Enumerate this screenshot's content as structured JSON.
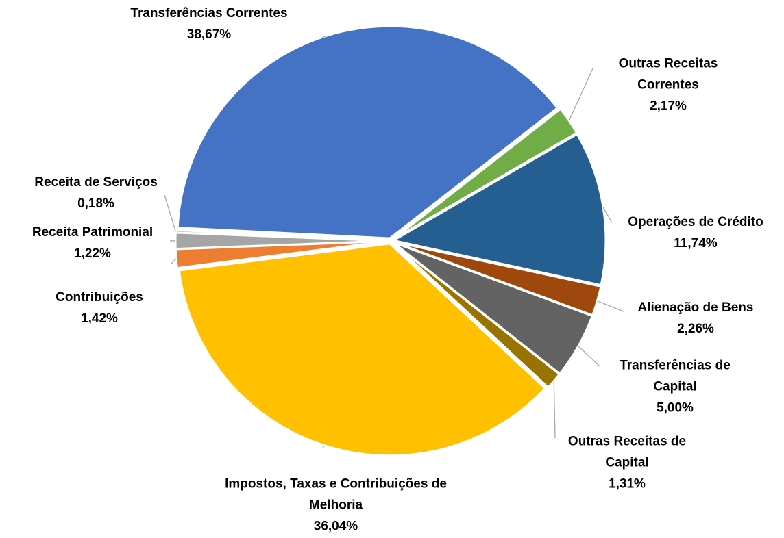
{
  "chart_data": {
    "type": "pie",
    "categories": [
      "Impostos, Taxas e Contribuições de Melhoria",
      "Contribuições",
      "Receita Patrimonial",
      "Receita de Serviços",
      "Transferências Correntes",
      "Outras Receitas Correntes",
      "Operações de Crédito",
      "Alienação de Bens",
      "Transferências de Capital",
      "Outras Receitas de Capital"
    ],
    "values": [
      36.04,
      1.42,
      1.22,
      0.18,
      38.67,
      2.17,
      11.74,
      2.26,
      5.0,
      1.31
    ],
    "value_labels": [
      "36,04%",
      "1,42%",
      "1,22%",
      "0,18%",
      "38,67%",
      "2,17%",
      "11,74%",
      "2,26%",
      "5,00%",
      "1,31%"
    ],
    "colors": [
      "#ffc000",
      "#ed7d31",
      "#a5a5a5",
      "#5b9bd5",
      "#4472c4",
      "#70ad47",
      "#255e91",
      "#9e480e",
      "#636363",
      "#997300"
    ]
  }
}
